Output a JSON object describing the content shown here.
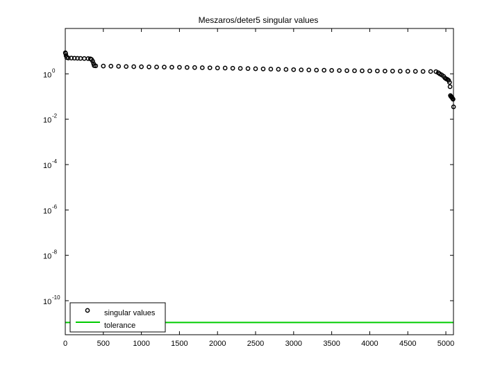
{
  "chart_data": {
    "type": "scatter",
    "title": "Meszaros/deter5 singular values",
    "xlabel": "",
    "ylabel": "",
    "xlim": [
      0,
      5100
    ],
    "ylim_exp": [
      -11.5,
      2
    ],
    "y_scale": "log",
    "x_ticks": [
      0,
      500,
      1000,
      1500,
      2000,
      2500,
      3000,
      3500,
      4000,
      4500,
      5000
    ],
    "y_tick_bases": [
      "10",
      "10",
      "10",
      "10",
      "10",
      "10"
    ],
    "y_tick_exponents": [
      "-10",
      "-8",
      "-6",
      "-4",
      "-2",
      "0"
    ],
    "y_tick_exp_values": [
      -10,
      -8,
      -6,
      -4,
      -2,
      0
    ],
    "grid": false,
    "legend_position": "bottom-left",
    "legend": [
      "singular values",
      "tolerance"
    ],
    "series": [
      {
        "name": "singular values",
        "marker": "circle",
        "color": "#000000",
        "points": [
          [
            1,
            8.5
          ],
          [
            5,
            7.9
          ],
          [
            10,
            6.4
          ],
          [
            20,
            5.2
          ],
          [
            40,
            5.0
          ],
          [
            80,
            4.95
          ],
          [
            120,
            4.9
          ],
          [
            160,
            4.85
          ],
          [
            200,
            4.8
          ],
          [
            250,
            4.75
          ],
          [
            300,
            4.7
          ],
          [
            330,
            4.6
          ],
          [
            345,
            4.3
          ],
          [
            360,
            3.6
          ],
          [
            372,
            2.8
          ],
          [
            380,
            2.3
          ],
          [
            400,
            2.25
          ],
          [
            500,
            2.2
          ],
          [
            600,
            2.18
          ],
          [
            700,
            2.15
          ],
          [
            800,
            2.1
          ],
          [
            900,
            2.07
          ],
          [
            1000,
            2.05
          ],
          [
            1100,
            2.02
          ],
          [
            1200,
            2.0
          ],
          [
            1300,
            1.98
          ],
          [
            1400,
            1.96
          ],
          [
            1500,
            1.94
          ],
          [
            1600,
            1.92
          ],
          [
            1700,
            1.9
          ],
          [
            1800,
            1.87
          ],
          [
            1900,
            1.84
          ],
          [
            2000,
            1.82
          ],
          [
            2100,
            1.8
          ],
          [
            2200,
            1.77
          ],
          [
            2300,
            1.74
          ],
          [
            2400,
            1.71
          ],
          [
            2500,
            1.68
          ],
          [
            2600,
            1.65
          ],
          [
            2700,
            1.62
          ],
          [
            2800,
            1.59
          ],
          [
            2900,
            1.56
          ],
          [
            3000,
            1.53
          ],
          [
            3100,
            1.5
          ],
          [
            3200,
            1.48
          ],
          [
            3300,
            1.46
          ],
          [
            3400,
            1.44
          ],
          [
            3500,
            1.42
          ],
          [
            3600,
            1.4
          ],
          [
            3700,
            1.38
          ],
          [
            3800,
            1.37
          ],
          [
            3900,
            1.36
          ],
          [
            4000,
            1.35
          ],
          [
            4100,
            1.34
          ],
          [
            4200,
            1.33
          ],
          [
            4300,
            1.32
          ],
          [
            4400,
            1.31
          ],
          [
            4500,
            1.3
          ],
          [
            4600,
            1.29
          ],
          [
            4700,
            1.28
          ],
          [
            4800,
            1.27
          ],
          [
            4870,
            1.25
          ],
          [
            4900,
            1.12
          ],
          [
            4920,
            1.0
          ],
          [
            4945,
            0.9
          ],
          [
            4970,
            0.78
          ],
          [
            4990,
            0.65
          ],
          [
            5005,
            0.6
          ],
          [
            5020,
            0.57
          ],
          [
            5035,
            0.52
          ],
          [
            5048,
            0.42
          ],
          [
            5055,
            0.27
          ],
          [
            5060,
            0.11
          ],
          [
            5068,
            0.1
          ],
          [
            5075,
            0.095
          ],
          [
            5082,
            0.09
          ],
          [
            5090,
            0.08
          ],
          [
            5095,
            0.076
          ],
          [
            5101,
            0.035
          ]
        ]
      },
      {
        "name": "tolerance",
        "type": "line",
        "color": "#00cc00",
        "x": [
          0,
          5100
        ],
        "y": [
          1.1e-11,
          1.1e-11
        ]
      }
    ]
  }
}
